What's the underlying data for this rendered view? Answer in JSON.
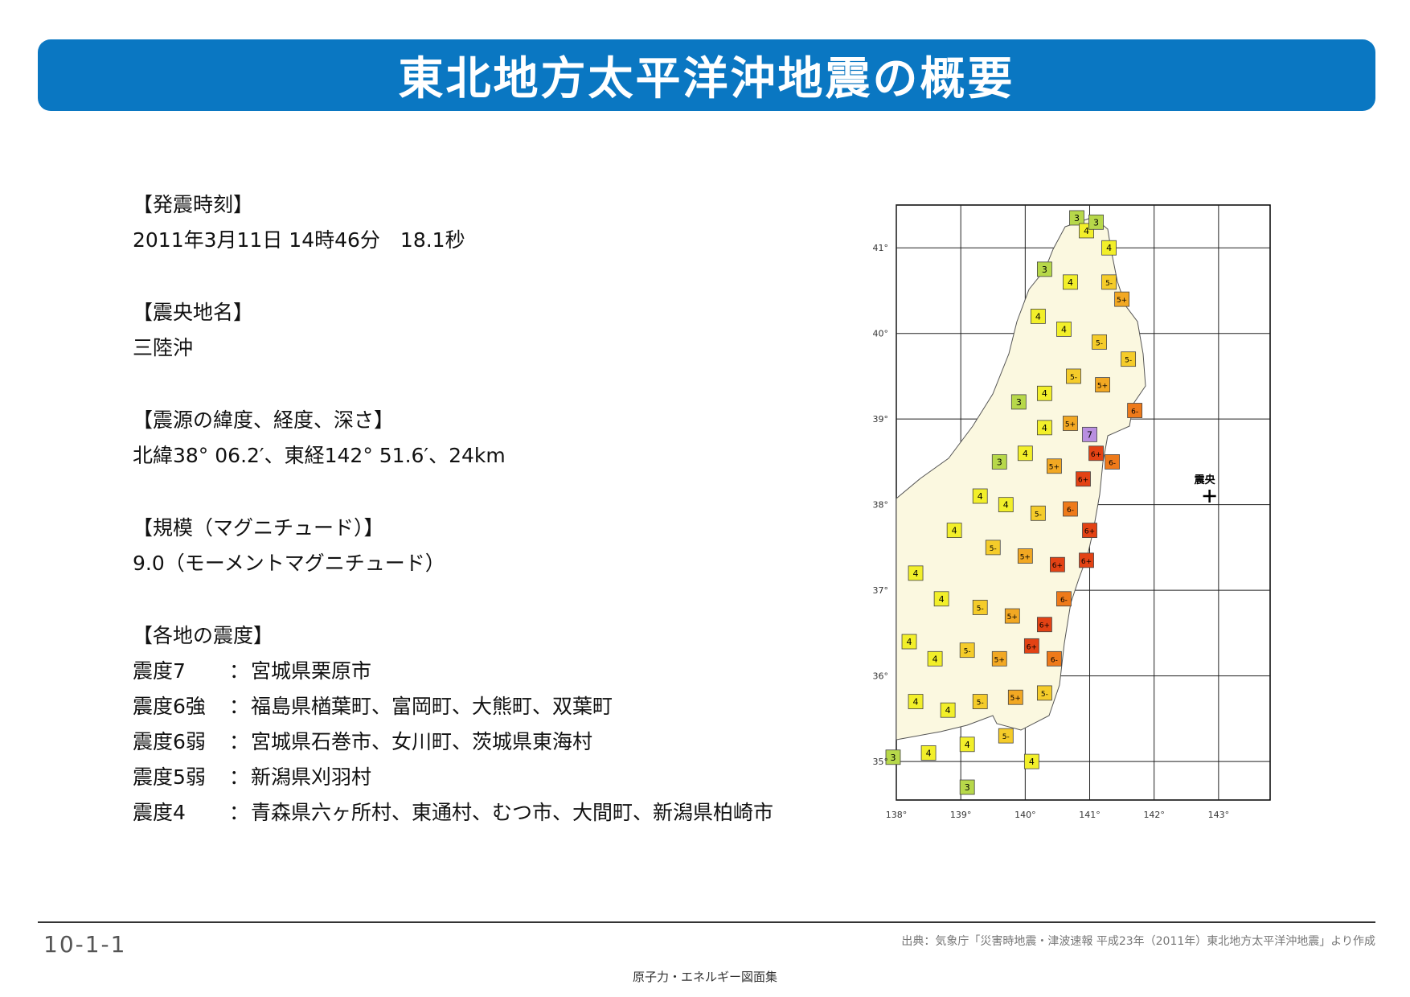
{
  "header": {
    "title": "東北地方太平洋沖地震の概要"
  },
  "info": {
    "time_heading": "【発震時刻】",
    "time_value": "2011年3月11日 14時46分　18.1秒",
    "epicenter_heading": "【震央地名】",
    "epicenter_value": "三陸沖",
    "hypocenter_heading": "【震源の緯度、経度、深さ】",
    "hypocenter_value": "北緯38° 06.2′、東経142° 51.6′、24km",
    "magnitude_heading": "【規模（マグニチュード）】",
    "magnitude_value": "9.0（モーメントマグニチュード）",
    "intensity_heading": "【各地の震度】",
    "intensity_rows": [
      {
        "level": "震度7",
        "sep": "：",
        "places": "宮城県栗原市"
      },
      {
        "level": "震度6強",
        "sep": "：",
        "places": "福島県楢葉町、富岡町、大熊町、双葉町"
      },
      {
        "level": "震度6弱",
        "sep": "：",
        "places": "宮城県石巻市、女川町、茨城県東海村"
      },
      {
        "level": "震度5弱",
        "sep": "：",
        "places": "新潟県刈羽村"
      },
      {
        "level": "震度4",
        "sep": "：",
        "places": "青森県六ヶ所村、東通村、むつ市、大間町、新潟県柏崎市"
      }
    ]
  },
  "map": {
    "epicenter_label": "震央",
    "epicenter_lon": 142.86,
    "epicenter_lat": 38.1,
    "lon_ticks": [
      "138°",
      "139°",
      "140°",
      "141°",
      "142°",
      "143°"
    ],
    "lat_ticks": [
      "41°",
      "40°",
      "39°",
      "38°",
      "37°",
      "36°",
      "35°"
    ],
    "lon_range": [
      138,
      143.8
    ],
    "lat_range": [
      34.55,
      41.5
    ],
    "colors": {
      "3": "#b7d84a",
      "4": "#f2ef2a",
      "5-": "#f5cc2a",
      "5+": "#f2a823",
      "6-": "#ee7a1a",
      "6+": "#e34214",
      "7": "#b98fe0"
    },
    "stations": [
      {
        "label": "3",
        "lon": 140.8,
        "lat": 41.35
      },
      {
        "label": "4",
        "lon": 140.95,
        "lat": 41.2
      },
      {
        "label": "3",
        "lon": 141.1,
        "lat": 41.3
      },
      {
        "label": "4",
        "lon": 141.3,
        "lat": 41.0
      },
      {
        "label": "3",
        "lon": 140.3,
        "lat": 40.75
      },
      {
        "label": "4",
        "lon": 140.7,
        "lat": 40.6
      },
      {
        "label": "5-",
        "lon": 141.3,
        "lat": 40.6
      },
      {
        "label": "5+",
        "lon": 141.5,
        "lat": 40.4
      },
      {
        "label": "4",
        "lon": 140.2,
        "lat": 40.2
      },
      {
        "label": "4",
        "lon": 140.6,
        "lat": 40.05
      },
      {
        "label": "5-",
        "lon": 141.15,
        "lat": 39.9
      },
      {
        "label": "5-",
        "lon": 141.6,
        "lat": 39.7
      },
      {
        "label": "3",
        "lon": 139.9,
        "lat": 39.2
      },
      {
        "label": "4",
        "lon": 140.3,
        "lat": 39.3
      },
      {
        "label": "5-",
        "lon": 140.75,
        "lat": 39.5
      },
      {
        "label": "5+",
        "lon": 141.2,
        "lat": 39.4
      },
      {
        "label": "6-",
        "lon": 141.7,
        "lat": 39.1
      },
      {
        "label": "4",
        "lon": 140.3,
        "lat": 38.9
      },
      {
        "label": "5+",
        "lon": 140.7,
        "lat": 38.95
      },
      {
        "label": "7",
        "lon": 141.0,
        "lat": 38.82
      },
      {
        "label": "6+",
        "lon": 141.1,
        "lat": 38.6
      },
      {
        "label": "6-",
        "lon": 141.35,
        "lat": 38.5
      },
      {
        "label": "3",
        "lon": 139.6,
        "lat": 38.5
      },
      {
        "label": "4",
        "lon": 140.0,
        "lat": 38.6
      },
      {
        "label": "5+",
        "lon": 140.45,
        "lat": 38.45
      },
      {
        "label": "6+",
        "lon": 140.9,
        "lat": 38.3
      },
      {
        "label": "4",
        "lon": 139.3,
        "lat": 38.1
      },
      {
        "label": "4",
        "lon": 139.7,
        "lat": 38.0
      },
      {
        "label": "5-",
        "lon": 140.2,
        "lat": 37.9
      },
      {
        "label": "6-",
        "lon": 140.7,
        "lat": 37.95
      },
      {
        "label": "6+",
        "lon": 141.0,
        "lat": 37.7
      },
      {
        "label": "4",
        "lon": 138.9,
        "lat": 37.7
      },
      {
        "label": "5-",
        "lon": 139.5,
        "lat": 37.5
      },
      {
        "label": "5+",
        "lon": 140.0,
        "lat": 37.4
      },
      {
        "label": "6+",
        "lon": 140.5,
        "lat": 37.3
      },
      {
        "label": "6+",
        "lon": 140.95,
        "lat": 37.35
      },
      {
        "label": "4",
        "lon": 138.3,
        "lat": 37.2
      },
      {
        "label": "4",
        "lon": 138.7,
        "lat": 36.9
      },
      {
        "label": "5-",
        "lon": 139.3,
        "lat": 36.8
      },
      {
        "label": "5+",
        "lon": 139.8,
        "lat": 36.7
      },
      {
        "label": "6+",
        "lon": 140.3,
        "lat": 36.6
      },
      {
        "label": "6-",
        "lon": 140.6,
        "lat": 36.9
      },
      {
        "label": "4",
        "lon": 138.2,
        "lat": 36.4
      },
      {
        "label": "4",
        "lon": 138.6,
        "lat": 36.2
      },
      {
        "label": "5-",
        "lon": 139.1,
        "lat": 36.3
      },
      {
        "label": "5+",
        "lon": 139.6,
        "lat": 36.2
      },
      {
        "label": "6+",
        "lon": 140.1,
        "lat": 36.35
      },
      {
        "label": "6-",
        "lon": 140.45,
        "lat": 36.2
      },
      {
        "label": "4",
        "lon": 138.3,
        "lat": 35.7
      },
      {
        "label": "4",
        "lon": 138.8,
        "lat": 35.6
      },
      {
        "label": "5-",
        "lon": 139.3,
        "lat": 35.7
      },
      {
        "label": "5+",
        "lon": 139.85,
        "lat": 35.75
      },
      {
        "label": "5-",
        "lon": 140.3,
        "lat": 35.8
      },
      {
        "label": "3",
        "lon": 137.95,
        "lat": 35.05
      },
      {
        "label": "4",
        "lon": 138.5,
        "lat": 35.1
      },
      {
        "label": "4",
        "lon": 139.1,
        "lat": 35.2
      },
      {
        "label": "5-",
        "lon": 139.7,
        "lat": 35.3
      },
      {
        "label": "4",
        "lon": 140.1,
        "lat": 35.0
      },
      {
        "label": "3",
        "lon": 139.1,
        "lat": 34.7
      }
    ]
  },
  "footer": {
    "page_number": "10-1-1",
    "source": "出典：気象庁「災害時地震・津波速報 平成23年（2011年）東北地方太平洋沖地震」より作成",
    "book_title": "原子力・エネルギー図面集"
  }
}
